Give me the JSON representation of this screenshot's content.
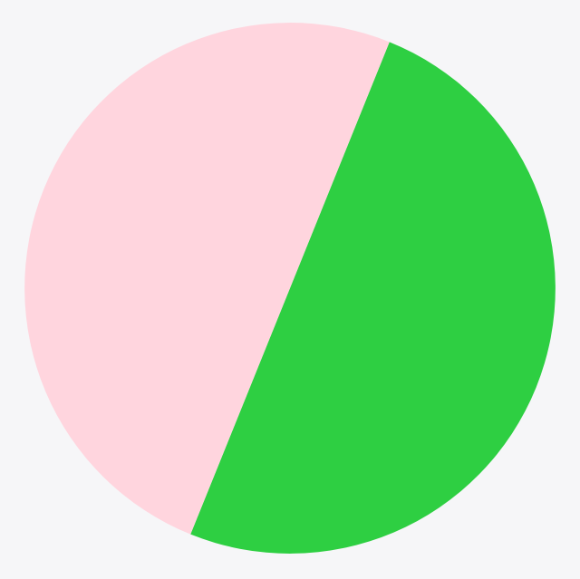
{
  "chart_data": {
    "type": "pie",
    "title": "",
    "start_angle_deg": 22,
    "direction": "clockwise",
    "slices": [
      {
        "value": 50,
        "color": "#2ecf42"
      },
      {
        "value": 50,
        "color": "#ffd5de"
      }
    ],
    "legend": "none",
    "background": "#f6f6f8"
  }
}
